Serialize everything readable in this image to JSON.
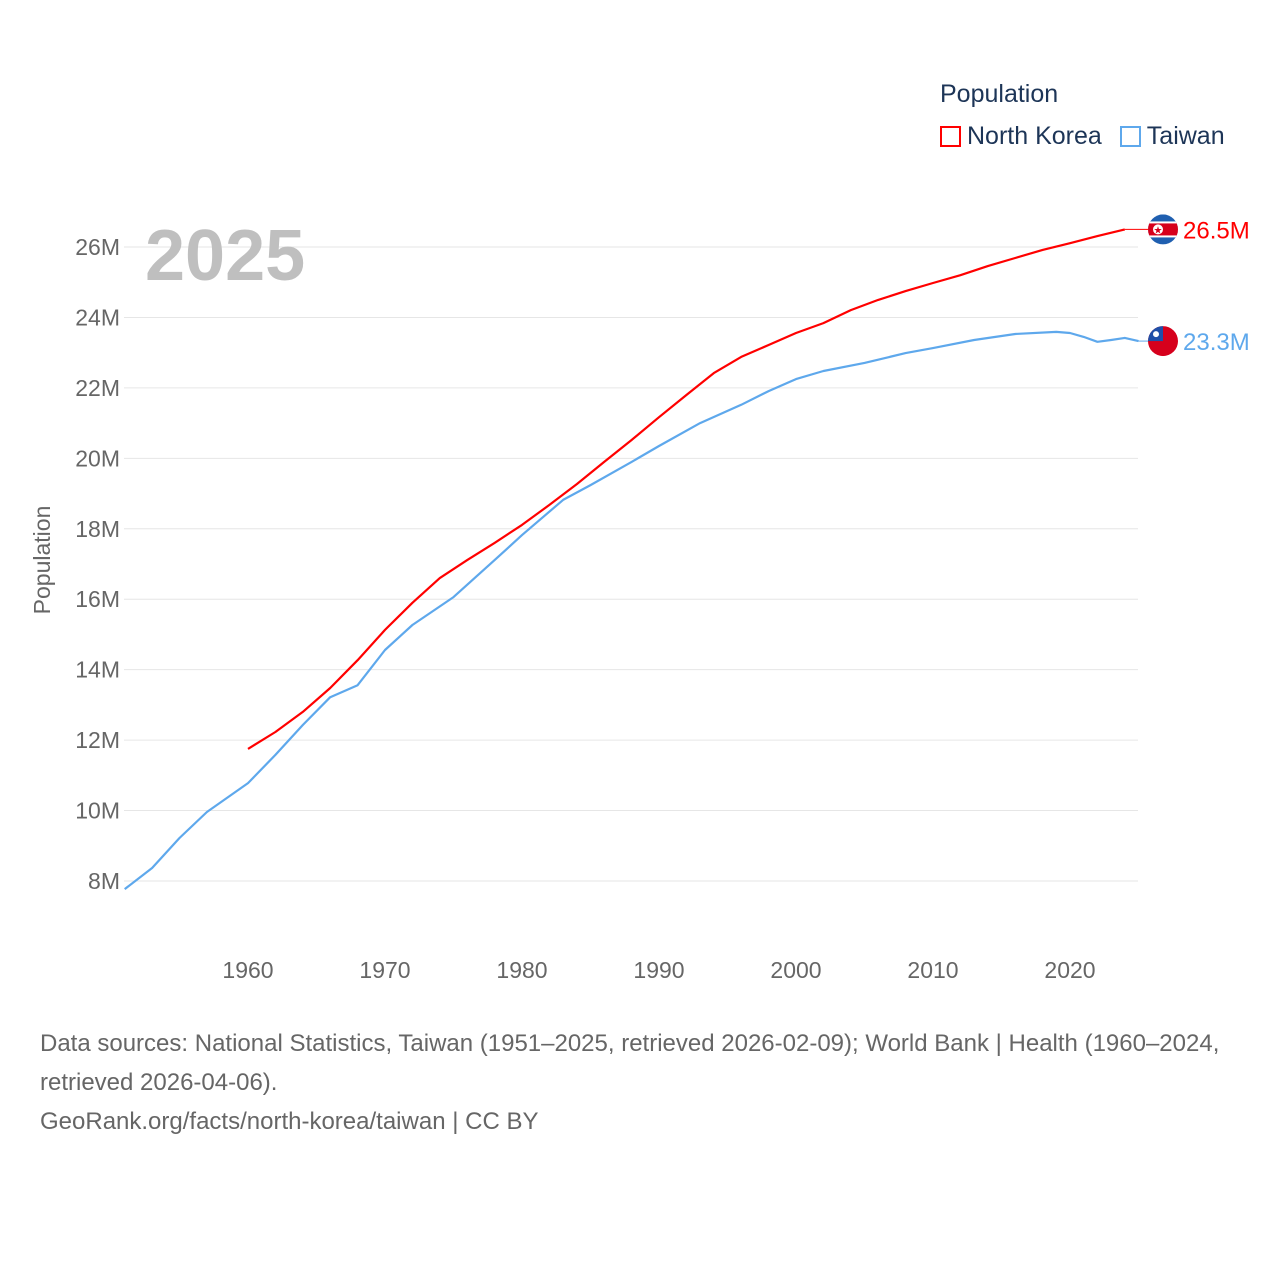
{
  "chart_data": {
    "type": "line",
    "year_label": "2025",
    "ylabel": "Population",
    "xlabel": "",
    "xlim": [
      1951,
      2025
    ],
    "ylim": [
      7,
      27.5
    ],
    "x_ticks": [
      1960,
      1970,
      1980,
      1990,
      2000,
      2010,
      2020
    ],
    "y_ticks": [
      8,
      10,
      12,
      14,
      16,
      18,
      20,
      22,
      24,
      26
    ],
    "y_tick_labels": [
      "8M",
      "10M",
      "12M",
      "14M",
      "16M",
      "18M",
      "20M",
      "22M",
      "24M",
      "26M"
    ],
    "grid": true,
    "legend": {
      "title": "Population",
      "placement": "top-right"
    },
    "series": [
      {
        "name": "North Korea",
        "color": "#ff0000",
        "end_label": "26.5M",
        "flag": "north-korea-flag",
        "x": [
          1960,
          1962,
          1964,
          1966,
          1968,
          1970,
          1972,
          1974,
          1976,
          1978,
          1980,
          1982,
          1984,
          1986,
          1988,
          1990,
          1992,
          1994,
          1996,
          1998,
          2000,
          2002,
          2004,
          2006,
          2008,
          2010,
          2012,
          2014,
          2016,
          2018,
          2020,
          2022,
          2024
        ],
        "y": [
          11.75,
          12.23,
          12.8,
          13.48,
          14.27,
          15.13,
          15.9,
          16.6,
          17.11,
          17.6,
          18.11,
          18.68,
          19.27,
          19.9,
          20.52,
          21.17,
          21.8,
          22.42,
          22.88,
          23.22,
          23.56,
          23.84,
          24.21,
          24.5,
          24.75,
          24.98,
          25.2,
          25.46,
          25.69,
          25.92,
          26.11,
          26.31,
          26.5
        ]
      },
      {
        "name": "Taiwan",
        "color": "#5ea8ec",
        "end_label": "23.3M",
        "flag": "taiwan-flag",
        "x": [
          1951,
          1953,
          1955,
          1957,
          1960,
          1962,
          1964,
          1966,
          1968,
          1970,
          1972,
          1975,
          1978,
          1980,
          1983,
          1985,
          1988,
          1990,
          1993,
          1996,
          1998,
          2000,
          2002,
          2005,
          2008,
          2010,
          2013,
          2016,
          2019,
          2020,
          2021,
          2022,
          2023,
          2024,
          2025
        ],
        "y": [
          7.77,
          8.37,
          9.22,
          9.96,
          10.78,
          11.58,
          12.43,
          13.22,
          13.56,
          14.56,
          15.27,
          16.06,
          17.11,
          17.82,
          18.82,
          19.24,
          19.9,
          20.35,
          21.0,
          21.52,
          21.91,
          22.25,
          22.48,
          22.71,
          22.99,
          23.13,
          23.36,
          23.53,
          23.59,
          23.56,
          23.45,
          23.31,
          23.36,
          23.42,
          23.33
        ]
      }
    ]
  },
  "footer": {
    "sources": "Data sources: National Statistics, Taiwan (1951–2025, retrieved 2026-02-09); World Bank | Health (1960–2024, retrieved 2026-04-06).",
    "credit": "GeoRank.org/facts/north-korea/taiwan | CC BY"
  }
}
